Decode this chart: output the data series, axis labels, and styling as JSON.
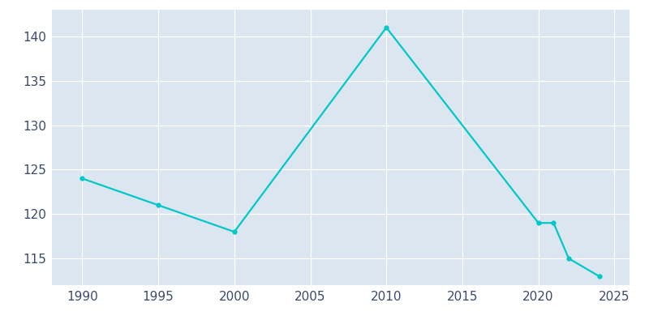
{
  "years": [
    1990,
    1995,
    2000,
    2010,
    2020,
    2021,
    2022,
    2024
  ],
  "population": [
    124,
    121,
    118,
    141,
    119,
    119,
    115,
    113
  ],
  "line_color": "#00c8c8",
  "bg_color": "#dce6f1",
  "fig_bg_color": "#ffffff",
  "xlim": [
    1988,
    2026
  ],
  "ylim": [
    112,
    143
  ],
  "xticks": [
    1990,
    1995,
    2000,
    2005,
    2010,
    2015,
    2020,
    2025
  ],
  "yticks": [
    115,
    120,
    125,
    130,
    135,
    140
  ],
  "linewidth": 1.6,
  "markersize": 3.5,
  "tick_fontsize": 11,
  "tick_color": "#3a4a6b",
  "grid_color": "#ffffff",
  "grid_linewidth": 0.9
}
